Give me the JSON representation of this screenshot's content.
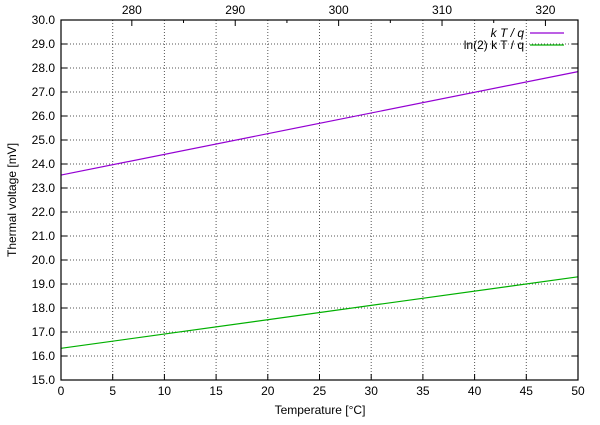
{
  "chart_data": {
    "type": "line",
    "xlabel": "Temperature [°C]",
    "ylabel": "Thermal voltage [mV]",
    "xlim": [
      0,
      50
    ],
    "ylim": [
      15,
      30
    ],
    "x2lim_kelvin": [
      273.15,
      323.15
    ],
    "x_ticks": [
      "0",
      "5",
      "10",
      "15",
      "20",
      "25",
      "30",
      "35",
      "40",
      "45",
      "50"
    ],
    "x2_ticks": [
      "280",
      "290",
      "300",
      "310",
      "320"
    ],
    "y_ticks": [
      "15.0",
      "16.0",
      "17.0",
      "18.0",
      "19.0",
      "20.0",
      "21.0",
      "22.0",
      "23.0",
      "24.0",
      "25.0",
      "26.0",
      "27.0",
      "28.0",
      "29.0",
      "30.0"
    ],
    "grid": true,
    "legend_placement": "top-right",
    "series": [
      {
        "name": "k T / q",
        "color": "#9400d3",
        "x": [
          0,
          50
        ],
        "y": [
          23.54,
          27.85
        ]
      },
      {
        "name": "ln(2) k T / q",
        "color": "#00b000",
        "x": [
          0,
          50
        ],
        "y": [
          16.32,
          19.3
        ]
      }
    ]
  }
}
